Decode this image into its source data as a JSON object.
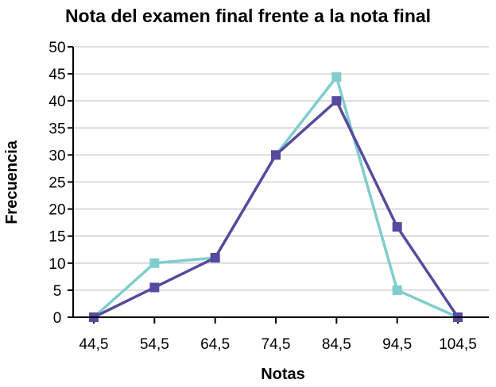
{
  "chart_data": {
    "type": "line",
    "title": "Nota del examen final frente a la nota final",
    "xlabel": "Notas",
    "ylabel": "Frecuencia",
    "x": [
      44.5,
      54.5,
      64.5,
      74.5,
      84.5,
      94.5,
      104.5
    ],
    "x_tick_labels": [
      "44,5",
      "54,5",
      "64,5",
      "74,5",
      "84,5",
      "94,5",
      "104,5"
    ],
    "y_ticks": [
      0,
      5,
      10,
      15,
      20,
      25,
      30,
      35,
      40,
      45,
      50
    ],
    "ylim": [
      0,
      50
    ],
    "grid": "horizontal",
    "legend": "none",
    "series": [
      {
        "color": "#7fcdcd",
        "marker": "square",
        "values": [
          0,
          10,
          11,
          30,
          44.4,
          5,
          0
        ]
      },
      {
        "color": "#574a9e",
        "marker": "square",
        "values": [
          0,
          5.5,
          11,
          30,
          40,
          16.7,
          0
        ]
      }
    ]
  }
}
